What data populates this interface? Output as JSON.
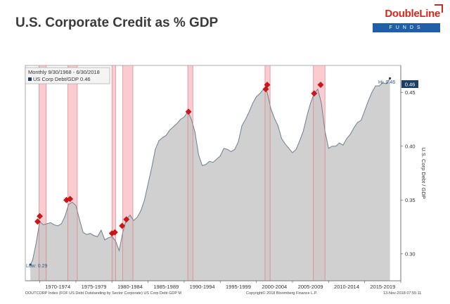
{
  "header": {
    "title": "U.S. Corporate Credit as % GDP"
  },
  "logo": {
    "name": "DoubleLine",
    "subtitle": "FUNDS"
  },
  "footer": {
    "source": "DOUTCORP Index (FOF US Debt Outstanding by Sector Corporate) US Corp Debt GDP  M",
    "copyright": "Copyright© 2018 Bloomberg Finance L.P.",
    "timestamp": "13-Nov-2018 07:55:11"
  },
  "colors": {
    "area_fill": "#c8c8c8",
    "area_line": "#6e7f93",
    "recession": "#f5a3a8",
    "recession_edge": "#e0737a",
    "marker": "#d41414",
    "current_badge": "#1f3e66"
  },
  "chart_data": {
    "type": "area",
    "legend_title": "Monthly 9/30/1968 - 6/30/2018",
    "legend_series": "US Corp Debt/GDP 0.46",
    "ylabel": "U.S. Corp Debt / GDP",
    "ylim": [
      0.275,
      0.475
    ],
    "yticks": [
      0.3,
      0.35,
      0.4,
      0.45
    ],
    "ytick_labels": [
      "0.30",
      "0.35",
      "0.40",
      "0.45"
    ],
    "xlim": [
      1968.0,
      2020.0
    ],
    "xtick_labels": [
      "1970-1974",
      "1975-1979",
      "1980-1984",
      "1985-1989",
      "1990-1994",
      "1995-1999",
      "2000-2004",
      "2005-2009",
      "2010-2014",
      "2015-2019"
    ],
    "xtick_positions": [
      1970,
      1975,
      1980,
      1985,
      1990,
      1995,
      2000,
      2005,
      2010,
      2015,
      2020
    ],
    "high_label": "Hi: 0.46",
    "low_label": "Low: 0.29",
    "current_label": "0.46",
    "current_value": 0.46,
    "recessions": [
      [
        1969.9,
        1970.9
      ],
      [
        1973.9,
        1975.2
      ],
      [
        1980.0,
        1980.5
      ],
      [
        1981.5,
        1982.9
      ],
      [
        1990.5,
        1991.2
      ],
      [
        2001.2,
        2001.9
      ],
      [
        2007.9,
        2009.5
      ]
    ],
    "markers": [
      {
        "x": 1969.7,
        "y": 0.33
      },
      {
        "x": 1970.0,
        "y": 0.335
      },
      {
        "x": 1973.7,
        "y": 0.35
      },
      {
        "x": 1974.2,
        "y": 0.351
      },
      {
        "x": 1980.0,
        "y": 0.319
      },
      {
        "x": 1980.4,
        "y": 0.32
      },
      {
        "x": 1981.4,
        "y": 0.326
      },
      {
        "x": 1982.0,
        "y": 0.332
      },
      {
        "x": 1990.6,
        "y": 0.432
      },
      {
        "x": 2001.3,
        "y": 0.453
      },
      {
        "x": 2001.5,
        "y": 0.457
      },
      {
        "x": 2008.0,
        "y": 0.449
      },
      {
        "x": 2008.9,
        "y": 0.457
      }
    ],
    "series": [
      {
        "name": "US Corp Debt/GDP",
        "x": [
          1968.7,
          1969.0,
          1969.5,
          1970.0,
          1970.5,
          1971.0,
          1971.5,
          1972.0,
          1972.5,
          1973.0,
          1973.5,
          1974.0,
          1974.5,
          1975.0,
          1975.5,
          1976.0,
          1976.5,
          1977.0,
          1977.5,
          1978.0,
          1978.5,
          1979.0,
          1979.5,
          1980.0,
          1980.5,
          1981.0,
          1981.5,
          1982.0,
          1982.5,
          1983.0,
          1983.5,
          1984.0,
          1984.5,
          1985.0,
          1985.5,
          1986.0,
          1986.5,
          1987.0,
          1987.5,
          1988.0,
          1988.5,
          1989.0,
          1989.5,
          1990.0,
          1990.5,
          1991.0,
          1991.5,
          1992.0,
          1992.5,
          1993.0,
          1993.5,
          1994.0,
          1994.5,
          1995.0,
          1995.5,
          1996.0,
          1996.5,
          1997.0,
          1997.5,
          1998.0,
          1998.5,
          1999.0,
          1999.5,
          2000.0,
          2000.5,
          2001.0,
          2001.5,
          2002.0,
          2002.5,
          2003.0,
          2003.5,
          2004.0,
          2004.5,
          2005.0,
          2005.5,
          2006.0,
          2006.5,
          2007.0,
          2007.5,
          2008.0,
          2008.5,
          2009.0,
          2009.5,
          2010.0,
          2010.5,
          2011.0,
          2011.5,
          2012.0,
          2012.5,
          2013.0,
          2013.5,
          2014.0,
          2014.5,
          2015.0,
          2015.5,
          2016.0,
          2016.5,
          2017.0,
          2017.5,
          2018.0,
          2018.5
        ],
        "values": [
          0.29,
          0.294,
          0.31,
          0.33,
          0.327,
          0.328,
          0.329,
          0.327,
          0.326,
          0.328,
          0.335,
          0.346,
          0.348,
          0.345,
          0.332,
          0.32,
          0.318,
          0.319,
          0.317,
          0.316,
          0.322,
          0.313,
          0.315,
          0.316,
          0.312,
          0.303,
          0.32,
          0.332,
          0.336,
          0.331,
          0.334,
          0.34,
          0.35,
          0.365,
          0.38,
          0.397,
          0.405,
          0.408,
          0.41,
          0.415,
          0.418,
          0.421,
          0.425,
          0.427,
          0.432,
          0.425,
          0.413,
          0.392,
          0.382,
          0.383,
          0.386,
          0.385,
          0.388,
          0.391,
          0.398,
          0.397,
          0.395,
          0.397,
          0.404,
          0.419,
          0.425,
          0.432,
          0.44,
          0.446,
          0.449,
          0.453,
          0.45,
          0.435,
          0.426,
          0.419,
          0.407,
          0.402,
          0.398,
          0.394,
          0.397,
          0.405,
          0.414,
          0.428,
          0.44,
          0.449,
          0.453,
          0.44,
          0.414,
          0.398,
          0.4,
          0.4,
          0.403,
          0.401,
          0.407,
          0.411,
          0.417,
          0.422,
          0.424,
          0.433,
          0.442,
          0.45,
          0.456,
          0.456,
          0.459,
          0.458,
          0.463
        ]
      }
    ]
  }
}
